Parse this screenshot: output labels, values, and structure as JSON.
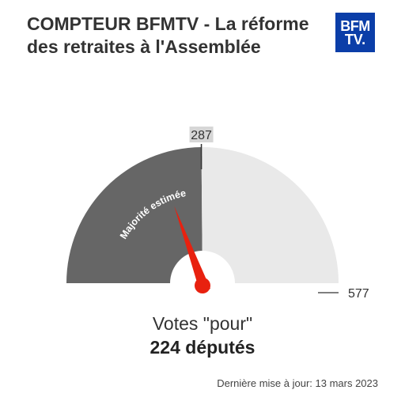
{
  "header": {
    "title": "COMPTEUR BFMTV - La réforme des retraites à l'Assemblée",
    "logo_line1": "BFM",
    "logo_line2": "TV."
  },
  "chart_data": {
    "type": "gauge",
    "value": 224,
    "max": 577,
    "majority_threshold": 287,
    "threshold_label": "287",
    "max_label": "577",
    "band_label": "Majorité estimée",
    "value_label": "Votes \"pour\"",
    "value_text": "224 députés",
    "colors": {
      "majority_band": "#666666",
      "remaining_band": "#e9e9e9",
      "needle": "#e8210f",
      "threshold_label_bg": "#d6d6d6",
      "logo_bg": "#0b3ea8"
    }
  },
  "footer": {
    "updated": "Dernière mise à jour: 13 mars 2023"
  }
}
